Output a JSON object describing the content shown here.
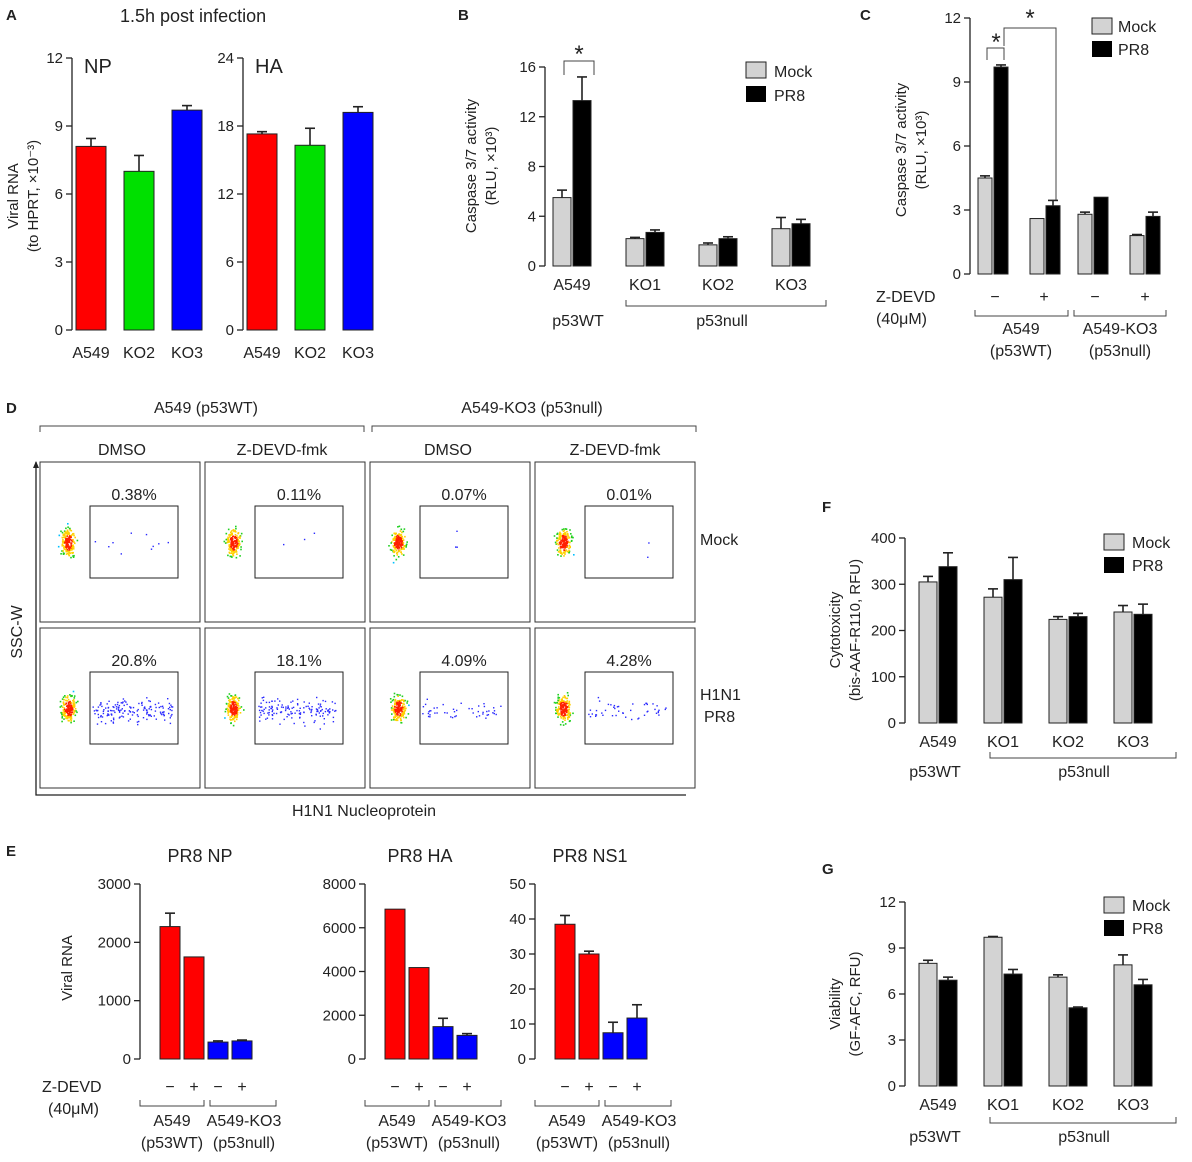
{
  "colors": {
    "mock": "#d3d3d3",
    "pr8": "#000000",
    "red": "#ff0000",
    "green": "#00e000",
    "blue": "#0000ff"
  },
  "chart_data": [
    {
      "panel": "A",
      "type": "bar",
      "title": "1.5h post infection",
      "ylabel": [
        "Viral RNA",
        "(to HPRT, ×10⁻³)"
      ],
      "sub": [
        {
          "label": "NP",
          "categories": [
            "A549",
            "KO2",
            "KO3"
          ],
          "values": [
            8.1,
            7.0,
            9.7
          ],
          "errors": [
            0.35,
            0.7,
            0.2
          ],
          "colors": [
            "red",
            "green",
            "blue"
          ],
          "ylim": [
            0,
            12
          ],
          "yticks": [
            "0",
            "3",
            "6",
            "9",
            "12"
          ]
        },
        {
          "label": "HA",
          "categories": [
            "A549",
            "KO2",
            "KO3"
          ],
          "values": [
            17.3,
            16.3,
            19.2
          ],
          "errors": [
            0.2,
            1.5,
            0.5
          ],
          "colors": [
            "red",
            "green",
            "blue"
          ],
          "ylim": [
            0,
            24
          ],
          "yticks": [
            "0",
            "6",
            "12",
            "18",
            "24"
          ]
        }
      ]
    },
    {
      "panel": "B",
      "type": "bar",
      "ylabel": [
        "Caspase 3/7 activity",
        "(RLU, ×10³)"
      ],
      "ylim": [
        0,
        16
      ],
      "yticks": [
        "0",
        "4",
        "8",
        "12",
        "16"
      ],
      "categories": [
        "A549",
        "KO1",
        "KO2",
        "KO3"
      ],
      "groups": [
        "p53WT",
        "p53null"
      ],
      "legend": [
        "Mock",
        "PR8"
      ],
      "series": [
        {
          "name": "Mock",
          "values": [
            5.5,
            2.2,
            1.7,
            3.0
          ],
          "errors": [
            0.6,
            0.1,
            0.15,
            0.9
          ]
        },
        {
          "name": "PR8",
          "values": [
            13.3,
            2.7,
            2.2,
            3.4
          ],
          "errors": [
            1.9,
            0.2,
            0.15,
            0.35
          ]
        }
      ],
      "annotations": [
        "*"
      ]
    },
    {
      "panel": "C",
      "type": "bar",
      "ylabel": [
        "Caspase 3/7 activity",
        "(RLU, ×10³)"
      ],
      "ylim": [
        0,
        12
      ],
      "yticks": [
        "0",
        "3",
        "6",
        "9",
        "12"
      ],
      "treatment_label": [
        "Z-DEVD",
        "(40μM)"
      ],
      "treatment": [
        "−",
        "+",
        "−",
        "+"
      ],
      "groups": [
        [
          "A549",
          "(p53WT)"
        ],
        [
          "A549-KO3",
          "(p53null)"
        ]
      ],
      "legend": [
        "Mock",
        "PR8"
      ],
      "series": [
        {
          "name": "Mock",
          "values": [
            4.5,
            2.6,
            2.8,
            1.8
          ],
          "errors": [
            0.1,
            0,
            0.1,
            0.05
          ]
        },
        {
          "name": "PR8",
          "values": [
            9.7,
            3.2,
            3.6,
            2.7
          ],
          "errors": [
            0.1,
            0.25,
            0,
            0.2
          ]
        }
      ],
      "annotations": [
        "*",
        "*"
      ]
    },
    {
      "panel": "D",
      "type": "flow-cytometry",
      "row_labels": [
        [
          "Mock"
        ],
        [
          "H1N1",
          "PR8"
        ]
      ],
      "groups": [
        "A549 (p53WT)",
        "A549-KO3 (p53null)"
      ],
      "columns": [
        "DMSO",
        "Z-DEVD-fmk",
        "DMSO",
        "Z-DEVD-fmk"
      ],
      "ylabel": "SSC-W",
      "xlabel": "H1N1 Nucleoprotein",
      "percentages": [
        [
          "0.38%",
          "0.11%",
          "0.07%",
          "0.01%"
        ],
        [
          "20.8%",
          "18.1%",
          "4.09%",
          "4.28%"
        ]
      ]
    },
    {
      "panel": "E",
      "type": "bar",
      "ylabel": "Viral RNA",
      "treatment_label": [
        "Z-DEVD",
        "(40μM)"
      ],
      "treatment": [
        "−",
        "+",
        "−",
        "+"
      ],
      "groups": [
        [
          "A549",
          "(p53WT)"
        ],
        [
          "A549-KO3",
          "(p53null)"
        ]
      ],
      "sub": [
        {
          "title": "PR8 NP",
          "values": [
            2270,
            1750,
            290,
            310
          ],
          "errors": [
            230,
            0,
            20,
            15
          ],
          "ylim": [
            0,
            3000
          ],
          "yticks": [
            "0",
            "1000",
            "2000",
            "3000"
          ]
        },
        {
          "title": "PR8 HA",
          "values": [
            6850,
            4180,
            1480,
            1080
          ],
          "errors": [
            0,
            0,
            380,
            80
          ],
          "ylim": [
            0,
            8000
          ],
          "yticks": [
            "0",
            "2000",
            "4000",
            "6000",
            "8000"
          ]
        },
        {
          "title": "PR8 NS1",
          "values": [
            38.5,
            30.0,
            7.5,
            11.7
          ],
          "errors": [
            2.5,
            0.8,
            3.0,
            3.8
          ],
          "ylim": [
            0,
            50
          ],
          "yticks": [
            "0",
            "10",
            "20",
            "30",
            "40",
            "50"
          ]
        }
      ],
      "bar_colors": [
        "red",
        "red",
        "blue",
        "blue"
      ]
    },
    {
      "panel": "F",
      "type": "bar",
      "ylabel": [
        "Cytotoxicity",
        "(bis-AAF-R110, RFU)"
      ],
      "ylim": [
        0,
        400
      ],
      "yticks": [
        "0",
        "100",
        "200",
        "300",
        "400"
      ],
      "categories": [
        "A549",
        "KO1",
        "KO2",
        "KO3"
      ],
      "groups": [
        "p53WT",
        "p53null"
      ],
      "legend": [
        "Mock",
        "PR8"
      ],
      "series": [
        {
          "name": "Mock",
          "values": [
            305,
            272,
            224,
            240
          ],
          "errors": [
            12,
            18,
            6,
            14
          ]
        },
        {
          "name": "PR8",
          "values": [
            338,
            310,
            230,
            235
          ],
          "errors": [
            30,
            48,
            7,
            22
          ]
        }
      ]
    },
    {
      "panel": "G",
      "type": "bar",
      "ylabel": [
        "Viability",
        "(GF-AFC, RFU)"
      ],
      "ylim": [
        0,
        12
      ],
      "yticks": [
        "0",
        "3",
        "6",
        "9",
        "12"
      ],
      "categories": [
        "A549",
        "KO1",
        "KO2",
        "KO3"
      ],
      "groups": [
        "p53WT",
        "p53null"
      ],
      "legend": [
        "Mock",
        "PR8"
      ],
      "series": [
        {
          "name": "Mock",
          "values": [
            8.0,
            9.7,
            7.1,
            7.9
          ],
          "errors": [
            0.2,
            0.05,
            0.15,
            0.65
          ]
        },
        {
          "name": "PR8",
          "values": [
            6.9,
            7.3,
            5.1,
            6.6
          ],
          "errors": [
            0.2,
            0.3,
            0.05,
            0.35
          ]
        }
      ]
    }
  ]
}
